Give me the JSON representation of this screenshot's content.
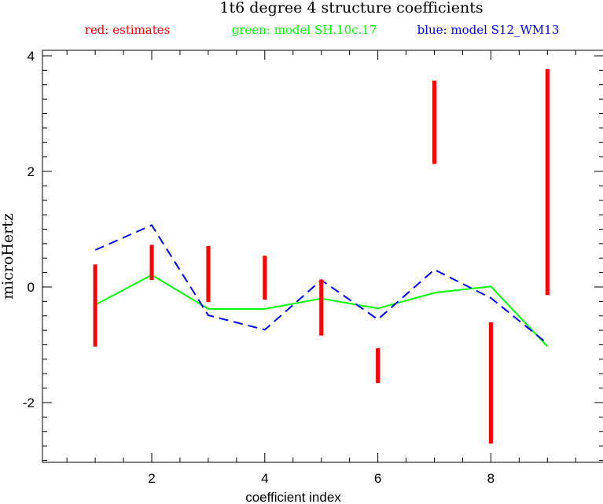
{
  "chart_data": {
    "type": "line",
    "title": "1t6 degree 4 structure coefficients",
    "legend": {
      "red": "red: estimates",
      "green": "green: model SH.10c.17",
      "blue": "blue: model S12_WM13"
    },
    "xlabel": "coefficient index",
    "ylabel": "microHertz",
    "xlim": [
      0,
      10
    ],
    "ylim": [
      -3,
      4.1
    ],
    "x_ticks": [
      2,
      4,
      6,
      8
    ],
    "y_ticks": [
      -2,
      0,
      2,
      4
    ],
    "x_tick_labels": [
      "2",
      "4",
      "6",
      "8"
    ],
    "y_tick_labels": [
      "-2",
      "0",
      "2",
      "4"
    ],
    "colors": {
      "estimates": "#ff0000",
      "green_model": "#00ff00",
      "blue_model": "#0000ff"
    },
    "estimates": [
      {
        "x": 1,
        "low": -1.03,
        "high": 0.39
      },
      {
        "x": 2,
        "low": 0.12,
        "high": 0.73
      },
      {
        "x": 3,
        "low": -0.26,
        "high": 0.71
      },
      {
        "x": 4,
        "low": -0.22,
        "high": 0.54
      },
      {
        "x": 5,
        "low": -0.84,
        "high": 0.13
      },
      {
        "x": 6,
        "low": -1.66,
        "high": -1.06
      },
      {
        "x": 7,
        "low": 2.13,
        "high": 3.57
      },
      {
        "x": 8,
        "low": -2.71,
        "high": -0.61
      },
      {
        "x": 9,
        "low": -0.14,
        "high": 3.77
      }
    ],
    "series": [
      {
        "name": "model SH.10c.17",
        "style": "solid",
        "color": "#00ff00",
        "x": [
          1,
          2,
          3,
          4,
          5,
          6,
          7,
          8,
          9
        ],
        "values": [
          -0.31,
          0.21,
          -0.38,
          -0.38,
          -0.2,
          -0.37,
          -0.1,
          0.01,
          -1.03
        ]
      },
      {
        "name": "model S12_WM13",
        "style": "dashed",
        "color": "#0000ff",
        "x": [
          1,
          2,
          3,
          4,
          5,
          6,
          7,
          8,
          9
        ],
        "values": [
          0.64,
          1.07,
          -0.49,
          -0.74,
          0.12,
          -0.56,
          0.3,
          -0.19,
          -0.98
        ]
      }
    ]
  }
}
